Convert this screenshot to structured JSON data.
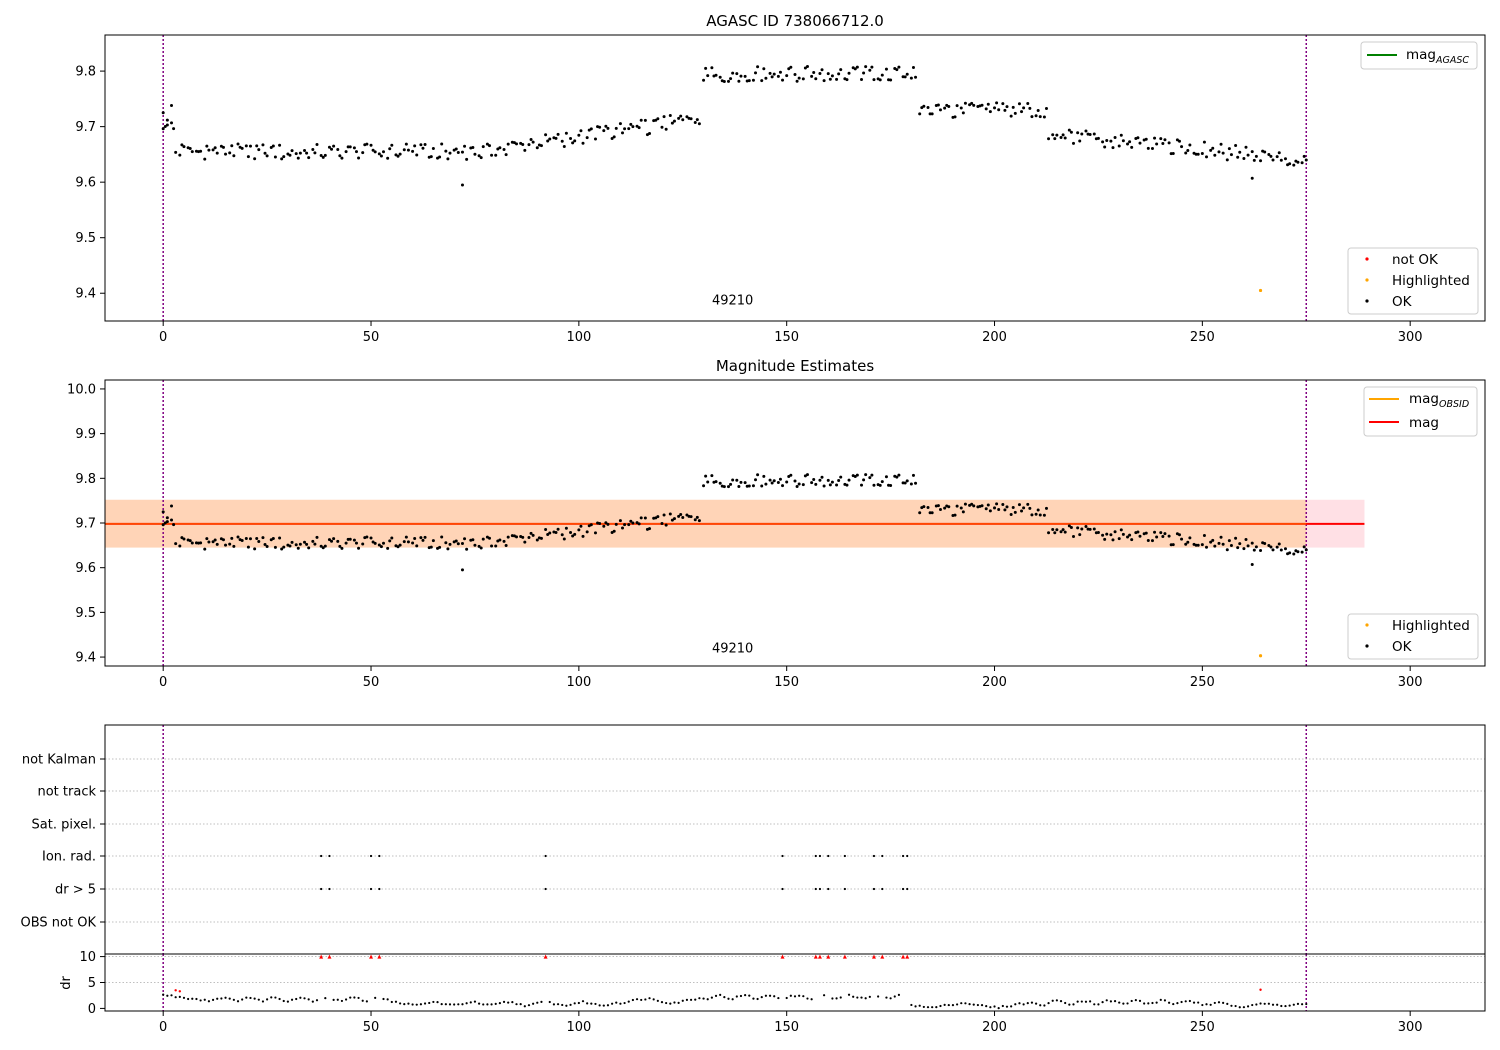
{
  "chart_data": [
    {
      "type": "scatter",
      "title": "AGASC ID 738066712.0",
      "xlim": [
        -14,
        318
      ],
      "ylim": [
        9.35,
        9.865
      ],
      "xticks": [
        "0",
        "50",
        "100",
        "150",
        "200",
        "250",
        "300"
      ],
      "yticks": [
        "9.4",
        "9.5",
        "9.6",
        "9.7",
        "9.8"
      ],
      "vlines_x": [
        0,
        275
      ],
      "annotation": {
        "text": "49210",
        "x": 137,
        "y": 9.38
      },
      "legend_top": [
        {
          "label": "mag",
          "sub": "AGASC",
          "color": "#008000"
        }
      ],
      "legend_bottom": [
        {
          "label": "not OK",
          "color": "#ff0000"
        },
        {
          "label": "Highlighted",
          "color": "#ffa500"
        },
        {
          "label": "OK",
          "color": "#000000"
        }
      ],
      "highlighted": [
        {
          "x": 264,
          "y": 9.405
        }
      ]
    },
    {
      "type": "scatter",
      "title": "Magnitude Estimates",
      "xlim": [
        -14,
        318
      ],
      "ylim": [
        9.38,
        10.02
      ],
      "xticks": [
        "0",
        "50",
        "100",
        "150",
        "200",
        "250",
        "300"
      ],
      "yticks": [
        "9.4",
        "9.5",
        "9.6",
        "9.7",
        "9.8",
        "9.9",
        "10.0"
      ],
      "vlines_x": [
        0,
        275
      ],
      "mean_mag": 9.698,
      "band_inner": [
        9.645,
        9.752
      ],
      "band_x": [
        -14,
        289
      ],
      "annotation": {
        "text": "49210",
        "x": 137,
        "y": 9.41
      },
      "legend_top": [
        {
          "label": "mag",
          "sub": "OBSID",
          "color": "#ffa500"
        },
        {
          "label": "mag",
          "sub": "",
          "color": "#ff0000"
        }
      ],
      "legend_bottom": [
        {
          "label": "Highlighted",
          "color": "#ffa500"
        },
        {
          "label": "OK",
          "color": "#000000"
        }
      ],
      "highlighted": [
        {
          "x": 264,
          "y": 9.403
        }
      ]
    },
    {
      "type": "scatter",
      "title": "",
      "xlim": [
        -14,
        318
      ],
      "xticks": [
        "0",
        "50",
        "100",
        "150",
        "200",
        "250",
        "300"
      ],
      "vlines_x": [
        0,
        275
      ],
      "flag_rows": [
        "not Kalman",
        "not track",
        "Sat. pixel.",
        "Ion. rad.",
        "dr > 5",
        "OBS not OK"
      ],
      "flagged_x": [
        38,
        40,
        50,
        52,
        92,
        149,
        157,
        158,
        160,
        164,
        171,
        173,
        178,
        179
      ],
      "flag_rows_with_points": [
        "Ion. rad.",
        "dr > 5"
      ]
    },
    {
      "type": "scatter",
      "title": "",
      "ylabel": "dr",
      "xlim": [
        -14,
        318
      ],
      "ylim": [
        -0.5,
        10.5
      ],
      "yticks": [
        "0",
        "5",
        "10"
      ],
      "vlines_x": [
        0,
        275
      ],
      "capped_value": 10,
      "capped_x": [
        38,
        40,
        50,
        52,
        92,
        149,
        157,
        158,
        160,
        164,
        171,
        173,
        178,
        179
      ],
      "highlighted": [
        {
          "x": 264,
          "y": 3.6
        }
      ]
    }
  ]
}
